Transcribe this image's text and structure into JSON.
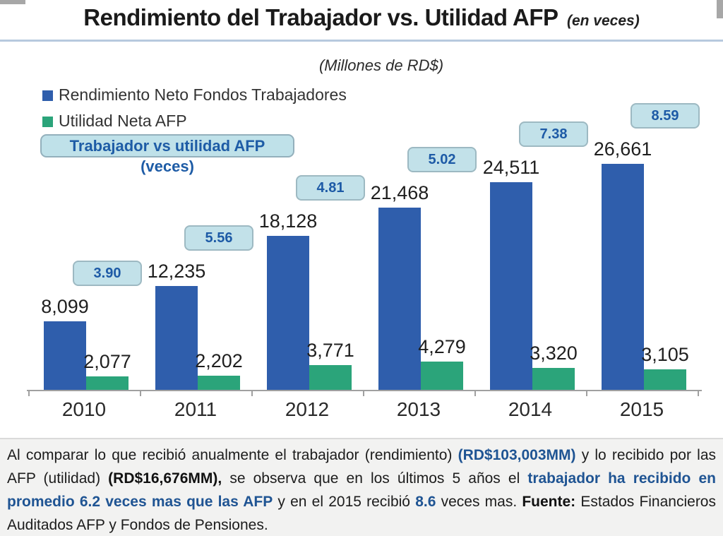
{
  "title": {
    "main": "Rendimiento del Trabajador vs. Utilidad AFP",
    "suffix": "(en veces)"
  },
  "subtitle": "(Millones de RD$)",
  "legend": {
    "series1": "Rendimiento Neto Fondos Trabajadores",
    "series2": "Utilidad Neta AFP",
    "ratio_badge": "Trabajador vs utilidad AFP (veces)"
  },
  "colors": {
    "series1": "#2f5eac",
    "series2": "#2ba47a",
    "badge_fill": "#c2e1e9",
    "badge_border": "#9db9c2",
    "badge_text": "#1d5aa6",
    "divider": "#b7c9de",
    "footer_highlight": "#1f5493"
  },
  "chart_data": {
    "type": "bar",
    "title": "Rendimiento del Trabajador vs. Utilidad AFP (en veces)",
    "subtitle": "(Millones de RD$)",
    "categories": [
      "2010",
      "2011",
      "2012",
      "2013",
      "2014",
      "2015"
    ],
    "series": [
      {
        "name": "Rendimiento Neto Fondos Trabajadores",
        "color": "#2f5eac",
        "values": [
          8099,
          12235,
          18128,
          21468,
          24511,
          26661
        ],
        "labels": [
          "8,099",
          "12,235",
          "18,128",
          "21,468",
          "24,511",
          "26,661"
        ]
      },
      {
        "name": "Utilidad Neta AFP",
        "color": "#2ba47a",
        "values": [
          2077,
          2202,
          3771,
          4279,
          3320,
          3105
        ],
        "labels": [
          "2,077",
          "2,202",
          "3,771",
          "4,279",
          "3,320",
          "3,105"
        ]
      }
    ],
    "ratios": [
      3.9,
      5.56,
      4.81,
      5.02,
      7.38,
      8.59
    ],
    "ratio_labels": [
      "3.90",
      "5.56",
      "4.81",
      "5.02",
      "7.38",
      "8.59"
    ],
    "xlabel": "",
    "ylabel": "",
    "value_axis_visible": false,
    "grid": false,
    "legend_position": "top-left",
    "data_labels": true
  },
  "footer": {
    "segments": [
      {
        "text": "Al comparar lo que recibió anualmente el trabajador (rendimiento) ",
        "style": "n"
      },
      {
        "text": "(RD$103,003MM)",
        "style": "bb"
      },
      {
        "text": " y lo recibido por las AFP (utilidad) ",
        "style": "n"
      },
      {
        "text": "(RD$16,676MM),",
        "style": "b"
      },
      {
        "text": " se observa que en los últimos 5 años el ",
        "style": "n"
      },
      {
        "text": "trabajador ha recibido en promedio 6.2 veces mas que las AFP",
        "style": "bb"
      },
      {
        "text": " y en el 2015 recibió ",
        "style": "n"
      },
      {
        "text": "8.6",
        "style": "bb"
      },
      {
        "text": " veces mas. ",
        "style": "n"
      },
      {
        "text": "Fuente:",
        "style": "b"
      },
      {
        "text": " Estados Financieros Auditados AFP y Fondos de Pensiones.",
        "style": "n"
      }
    ]
  }
}
